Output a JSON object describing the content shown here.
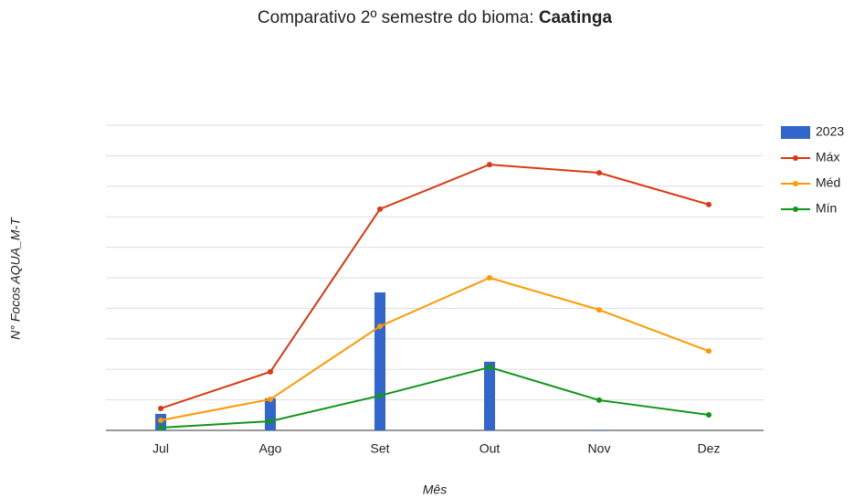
{
  "chart_data": {
    "type": "combo",
    "title": "Comparativo 2º semestre do bioma:",
    "title_bold": "Caatinga",
    "x_label": "Mês",
    "y_label": "N° Focos AQUA_M-T",
    "categories": [
      "Jul",
      "Ago",
      "Set",
      "Out",
      "Nov",
      "Dez"
    ],
    "series": [
      {
        "name": "2023",
        "kind": "bar",
        "color": "#3366cc",
        "values": [
          0.54,
          1.05,
          4.52,
          2.25,
          0.02,
          0
        ]
      },
      {
        "name": "Máx",
        "kind": "line",
        "color": "#dc3912",
        "values": [
          0.72,
          1.92,
          7.25,
          8.71,
          8.44,
          7.4
        ]
      },
      {
        "name": "Méd",
        "kind": "line",
        "color": "#ff9900",
        "values": [
          0.33,
          1.02,
          3.41,
          5.0,
          3.95,
          2.6
        ]
      },
      {
        "name": "Mín",
        "kind": "line",
        "color": "#109618",
        "values": [
          0.09,
          0.3,
          1.14,
          2.07,
          0.99,
          0.51
        ]
      }
    ],
    "ylim": [
      0,
      10
    ],
    "yticks": [
      0,
      1,
      2,
      3,
      4,
      5,
      6,
      7,
      8,
      9,
      10
    ],
    "grid": true,
    "legend": "right"
  }
}
